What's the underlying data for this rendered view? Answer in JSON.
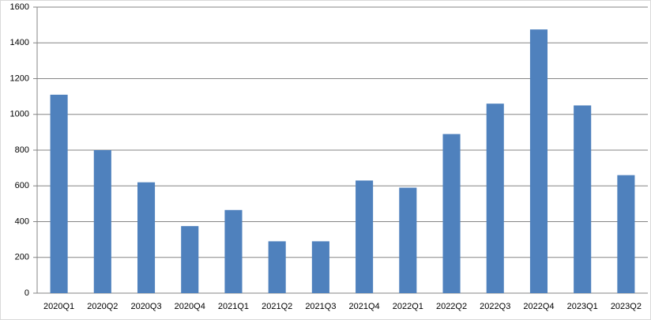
{
  "chart_data": {
    "type": "bar",
    "categories": [
      "2020Q1",
      "2020Q2",
      "2020Q3",
      "2020Q4",
      "2021Q1",
      "2021Q2",
      "2021Q3",
      "2021Q4",
      "2022Q1",
      "2022Q2",
      "2022Q3",
      "2022Q4",
      "2023Q1",
      "2023Q2"
    ],
    "values": [
      1110,
      800,
      620,
      375,
      465,
      290,
      290,
      630,
      590,
      890,
      1060,
      1475,
      1050,
      660
    ],
    "color": "#4f81bd",
    "ylim": [
      0,
      1600
    ],
    "yticks": [
      0,
      200,
      400,
      600,
      800,
      1000,
      1200,
      1400,
      1600
    ],
    "grid": true
  }
}
